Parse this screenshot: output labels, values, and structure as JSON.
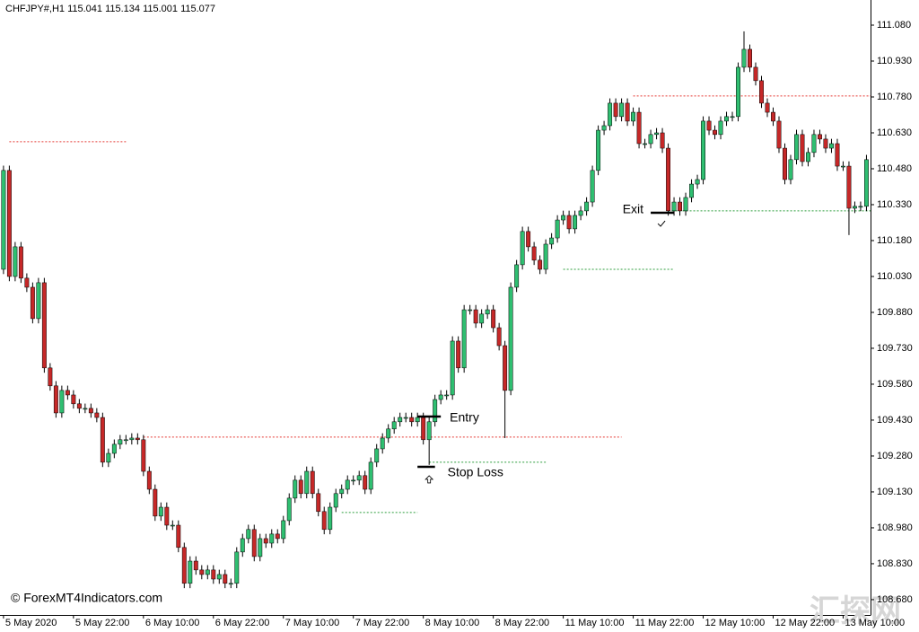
{
  "chart_data": {
    "type": "candlestick",
    "title": "CHFJPY#,H1  115.041 115.134 115.001 115.077",
    "source": "© ForexMT4Indicators.com",
    "watermark": "汇探网",
    "up_color": "#2fbf71",
    "down_color": "#c62828",
    "open": [
      110.06,
      110.473,
      110.03,
      110.154,
      110.023,
      109.985,
      109.854,
      110.004,
      109.648,
      109.573,
      109.46,
      109.554,
      109.535,
      109.498,
      109.479,
      109.479,
      109.46,
      109.441,
      109.254,
      109.291,
      109.329,
      109.348,
      109.348,
      109.355,
      109.348,
      109.216,
      109.141,
      109.029,
      109.066,
      108.991,
      108.991,
      108.898,
      108.748,
      108.841,
      108.804,
      108.785,
      108.804,
      108.766,
      108.785,
      108.748,
      108.748,
      108.879,
      108.935,
      108.973,
      108.86,
      108.935,
      108.916,
      108.954,
      108.935,
      109.01,
      109.104,
      109.179,
      109.123,
      109.216,
      109.123,
      109.048,
      108.973,
      109.066,
      109.123,
      109.141,
      109.179,
      109.179,
      109.198,
      109.141,
      109.254,
      109.31,
      109.355,
      109.393,
      109.423,
      109.441,
      109.441,
      109.423,
      109.441,
      109.348,
      109.423,
      109.516,
      109.535,
      109.535,
      109.76,
      109.648,
      109.891,
      109.891,
      109.835,
      109.873,
      109.891,
      109.816,
      109.741,
      109.554,
      109.985,
      110.079,
      110.218,
      110.154,
      110.098,
      110.06,
      110.165,
      110.191,
      110.266,
      110.285,
      110.229,
      110.285,
      110.304,
      110.341,
      110.473,
      110.641,
      110.66,
      110.754,
      110.698,
      110.754,
      110.679,
      110.716,
      110.585,
      110.585,
      110.623,
      110.63,
      110.566,
      110.304,
      110.341,
      110.304,
      110.36,
      110.416,
      110.435,
      110.679,
      110.641,
      110.623,
      110.679,
      110.698,
      110.698,
      110.904,
      110.979,
      110.904,
      110.848,
      110.754,
      110.716,
      110.679,
      110.566,
      110.435,
      110.518,
      110.623,
      110.51,
      110.548,
      110.623,
      110.604,
      110.566,
      110.585,
      110.491,
      110.491,
      110.315,
      110.323,
      110.323
    ],
    "high": [
      110.493,
      110.493,
      110.174,
      110.174,
      110.043,
      110.005,
      110.024,
      110.024,
      109.668,
      109.593,
      109.574,
      109.574,
      109.555,
      109.518,
      109.499,
      109.499,
      109.48,
      109.461,
      109.311,
      109.349,
      109.368,
      109.368,
      109.375,
      109.375,
      109.368,
      109.236,
      109.161,
      109.086,
      109.086,
      109.011,
      109.011,
      108.918,
      108.861,
      108.861,
      108.824,
      108.824,
      108.824,
      108.805,
      108.805,
      108.768,
      108.899,
      108.955,
      108.993,
      108.993,
      108.955,
      108.955,
      108.974,
      108.974,
      109.03,
      109.124,
      109.199,
      109.199,
      109.236,
      109.236,
      109.143,
      109.068,
      109.086,
      109.143,
      109.161,
      109.199,
      109.199,
      109.218,
      109.218,
      109.274,
      109.33,
      109.375,
      109.413,
      109.443,
      109.461,
      109.461,
      109.461,
      109.461,
      109.461,
      109.443,
      109.536,
      109.555,
      109.555,
      109.78,
      109.78,
      109.911,
      109.911,
      109.911,
      109.893,
      109.911,
      109.911,
      109.836,
      109.761,
      110.005,
      110.099,
      110.238,
      110.238,
      110.174,
      110.118,
      110.185,
      110.211,
      110.286,
      110.305,
      110.305,
      110.305,
      110.324,
      110.361,
      110.493,
      110.661,
      110.68,
      110.774,
      110.774,
      110.774,
      110.774,
      110.736,
      110.736,
      110.605,
      110.643,
      110.65,
      110.65,
      110.586,
      110.361,
      110.361,
      110.38,
      110.436,
      110.455,
      110.699,
      110.699,
      110.661,
      110.699,
      110.718,
      110.718,
      110.924,
      111.054,
      110.999,
      110.924,
      110.868,
      110.774,
      110.736,
      110.699,
      110.586,
      110.538,
      110.643,
      110.643,
      110.568,
      110.643,
      110.643,
      110.624,
      110.605,
      110.605,
      110.511,
      110.511,
      110.343,
      110.343,
      110.538
    ],
    "low": [
      110.04,
      110.01,
      110.01,
      110.003,
      109.965,
      109.834,
      109.834,
      109.628,
      109.553,
      109.44,
      109.44,
      109.515,
      109.478,
      109.459,
      109.459,
      109.44,
      109.421,
      109.234,
      109.234,
      109.271,
      109.309,
      109.328,
      109.328,
      109.328,
      109.196,
      109.121,
      109.009,
      109.009,
      108.971,
      108.971,
      108.878,
      108.728,
      108.728,
      108.784,
      108.765,
      108.765,
      108.746,
      108.746,
      108.728,
      108.728,
      108.728,
      108.859,
      108.915,
      108.84,
      108.84,
      108.896,
      108.896,
      108.915,
      108.915,
      108.99,
      109.084,
      109.103,
      109.103,
      109.103,
      109.028,
      108.953,
      108.953,
      109.046,
      109.103,
      109.121,
      109.159,
      109.159,
      109.121,
      109.121,
      109.234,
      109.29,
      109.335,
      109.373,
      109.403,
      109.421,
      109.403,
      109.403,
      109.328,
      109.243,
      109.403,
      109.496,
      109.515,
      109.515,
      109.628,
      109.628,
      109.871,
      109.815,
      109.815,
      109.853,
      109.796,
      109.721,
      109.355,
      109.534,
      109.965,
      110.059,
      110.134,
      110.078,
      110.04,
      110.04,
      110.145,
      110.171,
      110.246,
      110.209,
      110.209,
      110.265,
      110.284,
      110.321,
      110.453,
      110.621,
      110.64,
      110.678,
      110.678,
      110.659,
      110.659,
      110.565,
      110.565,
      110.565,
      110.603,
      110.546,
      110.284,
      110.284,
      110.284,
      110.284,
      110.34,
      110.396,
      110.415,
      110.621,
      110.603,
      110.603,
      110.659,
      110.678,
      110.678,
      110.884,
      110.884,
      110.828,
      110.734,
      110.696,
      110.659,
      110.546,
      110.415,
      110.415,
      110.498,
      110.49,
      110.49,
      110.528,
      110.584,
      110.546,
      110.546,
      110.471,
      110.471,
      110.203,
      110.295,
      110.303,
      110.303
    ],
    "close": [
      110.473,
      110.03,
      110.154,
      110.023,
      109.985,
      109.854,
      110.004,
      109.648,
      109.573,
      109.46,
      109.554,
      109.535,
      109.498,
      109.479,
      109.479,
      109.46,
      109.441,
      109.254,
      109.291,
      109.329,
      109.348,
      109.348,
      109.355,
      109.348,
      109.216,
      109.141,
      109.029,
      109.066,
      108.991,
      108.991,
      108.898,
      108.748,
      108.841,
      108.804,
      108.785,
      108.804,
      108.766,
      108.785,
      108.748,
      108.748,
      108.879,
      108.935,
      108.973,
      108.86,
      108.935,
      108.916,
      108.954,
      108.935,
      109.01,
      109.104,
      109.179,
      109.123,
      109.216,
      109.123,
      109.048,
      108.973,
      109.066,
      109.123,
      109.141,
      109.179,
      109.179,
      109.198,
      109.141,
      109.254,
      109.31,
      109.355,
      109.393,
      109.423,
      109.441,
      109.441,
      109.423,
      109.441,
      109.348,
      109.423,
      109.516,
      109.535,
      109.535,
      109.76,
      109.648,
      109.891,
      109.891,
      109.835,
      109.873,
      109.891,
      109.816,
      109.741,
      109.554,
      109.985,
      110.079,
      110.218,
      110.154,
      110.098,
      110.06,
      110.165,
      110.191,
      110.266,
      110.285,
      110.229,
      110.285,
      110.304,
      110.341,
      110.473,
      110.641,
      110.66,
      110.754,
      110.698,
      110.754,
      110.679,
      110.716,
      110.585,
      110.585,
      110.623,
      110.63,
      110.566,
      110.304,
      110.341,
      110.304,
      110.36,
      110.416,
      110.435,
      110.679,
      110.641,
      110.623,
      110.679,
      110.698,
      110.698,
      110.904,
      110.979,
      110.904,
      110.848,
      110.754,
      110.716,
      110.679,
      110.566,
      110.435,
      110.518,
      110.623,
      110.51,
      110.548,
      110.623,
      110.604,
      110.566,
      110.585,
      110.491,
      110.491,
      110.315,
      110.323,
      110.323,
      110.518
    ],
    "xlim": [
      -0.6,
      148.7
    ],
    "xticks": [
      {
        "value": 0,
        "label": "5 May 2020"
      },
      {
        "value": 12,
        "label": "5 May 22:00"
      },
      {
        "value": 24,
        "label": "6 May 10:00"
      },
      {
        "value": 36,
        "label": "6 May 22:00"
      },
      {
        "value": 48,
        "label": "7 May 10:00"
      },
      {
        "value": 60,
        "label": "7 May 22:00"
      },
      {
        "value": 72,
        "label": "8 May 10:00"
      },
      {
        "value": 84,
        "label": "8 May 22:00"
      },
      {
        "value": 96,
        "label": "11 May 10:00"
      },
      {
        "value": 108,
        "label": "11 May 22:00"
      },
      {
        "value": 120,
        "label": "12 May 10:00"
      },
      {
        "value": 132,
        "label": "12 May 22:00"
      },
      {
        "value": 144,
        "label": "13 May 10:00"
      }
    ],
    "ylim": [
      108.616,
      111.185
    ],
    "yticks": [
      {
        "value": 111.08,
        "label": "111.080"
      },
      {
        "value": 110.93,
        "label": "110.930"
      },
      {
        "value": 110.78,
        "label": "110.780"
      },
      {
        "value": 110.63,
        "label": "110.630"
      },
      {
        "value": 110.48,
        "label": "110.480"
      },
      {
        "value": 110.33,
        "label": "110.330"
      },
      {
        "value": 110.18,
        "label": "110.180"
      },
      {
        "value": 110.03,
        "label": "110.030"
      },
      {
        "value": 109.88,
        "label": "109.880"
      },
      {
        "value": 109.73,
        "label": "109.730"
      },
      {
        "value": 109.58,
        "label": "109.580"
      },
      {
        "value": 109.43,
        "label": "109.430"
      },
      {
        "value": 109.28,
        "label": "109.280"
      },
      {
        "value": 109.13,
        "label": "109.130"
      },
      {
        "value": 108.98,
        "label": "108.980"
      },
      {
        "value": 108.83,
        "label": "108.830"
      },
      {
        "value": 108.68,
        "label": "108.680"
      }
    ],
    "levels": [
      {
        "value": 110.593,
        "color": "#e53935",
        "from": 1,
        "to": 21
      },
      {
        "value": 109.359,
        "color": "#e53935",
        "from": 24,
        "to": 106
      },
      {
        "value": 110.784,
        "color": "#e53935",
        "from": 108,
        "to": 148.7
      },
      {
        "value": 109.044,
        "color": "#2e9e3e",
        "from": 58,
        "to": 71
      },
      {
        "value": 109.254,
        "color": "#2e9e3e",
        "from": 73,
        "to": 93
      },
      {
        "value": 110.06,
        "color": "#2e9e3e",
        "from": 96,
        "to": 115
      },
      {
        "value": 110.304,
        "color": "#2e9e3e",
        "from": 114,
        "to": 148.7
      }
    ],
    "markers": [
      {
        "label": "Entry",
        "value": 109.445,
        "from": 71,
        "to": 75
      },
      {
        "label": "Exit",
        "value": 110.296,
        "from": 111,
        "to": 115
      },
      {
        "label": "Stop Loss",
        "value": 109.235,
        "from": 71,
        "to": 74
      }
    ]
  }
}
